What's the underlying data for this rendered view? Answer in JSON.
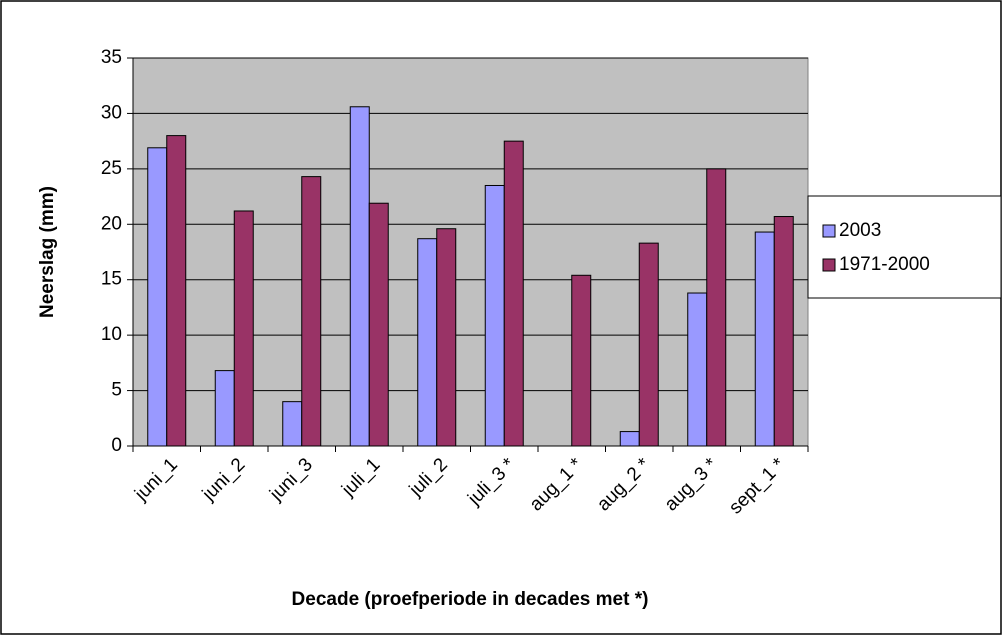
{
  "chart_data": {
    "type": "bar",
    "x_label": "Decade (proefperiode in decades met *)",
    "y_label": "Neerslag (mm)",
    "categories": [
      "juni_1",
      "juni_2",
      "juni_3",
      "juli_1",
      "juli_2",
      "juli_3 *",
      "aug_1 *",
      "aug_2 *",
      "aug_3 *",
      "sept_1 *"
    ],
    "series": [
      {
        "name": "2003",
        "color": "#9999ff",
        "values": [
          26.9,
          6.8,
          4.0,
          30.6,
          18.7,
          23.5,
          0,
          1.3,
          13.8,
          19.3
        ]
      },
      {
        "name": "1971-2000",
        "color": "#993366",
        "values": [
          28.0,
          21.2,
          24.3,
          21.9,
          19.6,
          27.5,
          15.4,
          18.3,
          25.0,
          20.7
        ]
      }
    ],
    "ylim": [
      0,
      35
    ],
    "yticks": [
      0,
      5,
      10,
      15,
      20,
      25,
      30,
      35
    ],
    "grid": true,
    "legend": "right"
  }
}
